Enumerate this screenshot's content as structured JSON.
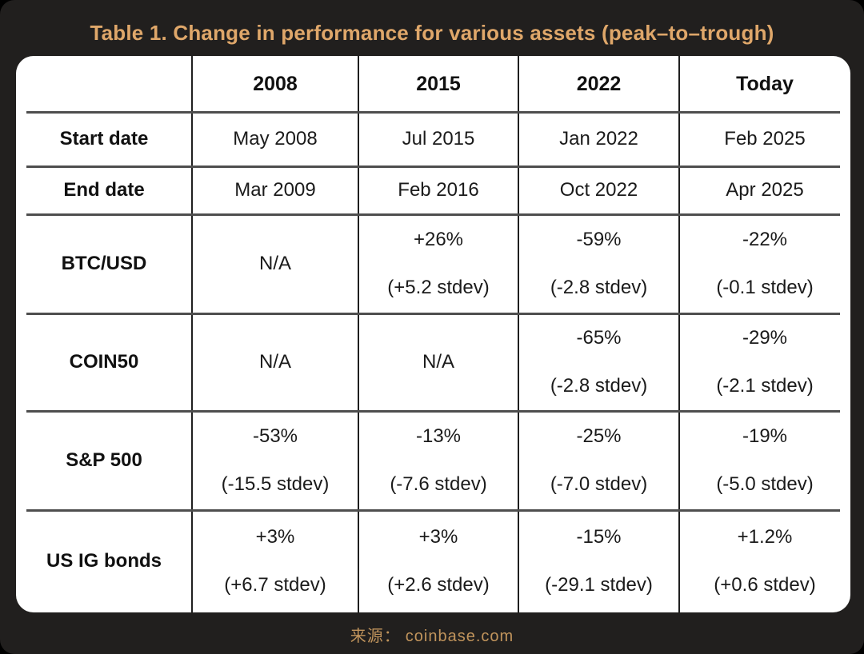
{
  "colors": {
    "background": "#000000",
    "panel": "#211f1e",
    "title_gold": "#dfa76a",
    "footer_gold": "#c1945c",
    "table_background": "#ffffff",
    "table_text": "#1b1b1b"
  },
  "chart_data": {
    "type": "table",
    "title": "Table 1. Change in performance for various assets (peak–to–trough)",
    "columns": [
      "",
      "2008",
      "2015",
      "2022",
      "Today"
    ],
    "rows": [
      {
        "label": "Start date",
        "cells": [
          {
            "main": "May 2008"
          },
          {
            "main": "Jul 2015"
          },
          {
            "main": "Jan 2022"
          },
          {
            "main": "Feb 2025"
          }
        ]
      },
      {
        "label": "End date",
        "cells": [
          {
            "main": "Mar 2009"
          },
          {
            "main": "Feb 2016"
          },
          {
            "main": "Oct 2022"
          },
          {
            "main": "Apr 2025"
          }
        ]
      },
      {
        "label": "BTC/USD",
        "cells": [
          {
            "main": "N/A",
            "sub": ""
          },
          {
            "main": "+26%",
            "sub": "(+5.2 stdev)"
          },
          {
            "main": "-59%",
            "sub": "(-2.8 stdev)"
          },
          {
            "main": "-22%",
            "sub": "(-0.1 stdev)"
          }
        ]
      },
      {
        "label": "COIN50",
        "cells": [
          {
            "main": "N/A",
            "sub": ""
          },
          {
            "main": "N/A",
            "sub": ""
          },
          {
            "main": "-65%",
            "sub": "(-2.8 stdev)"
          },
          {
            "main": "-29%",
            "sub": "(-2.1 stdev)"
          }
        ]
      },
      {
        "label": "S&P 500",
        "cells": [
          {
            "main": "-53%",
            "sub": "(-15.5 stdev)"
          },
          {
            "main": "-13%",
            "sub": "(-7.6 stdev)"
          },
          {
            "main": "-25%",
            "sub": "(-7.0 stdev)"
          },
          {
            "main": "-19%",
            "sub": "(-5.0 stdev)"
          }
        ]
      },
      {
        "label": "US IG bonds",
        "cells": [
          {
            "main": "+3%",
            "sub": "(+6.7 stdev)"
          },
          {
            "main": "+3%",
            "sub": "(+2.6 stdev)"
          },
          {
            "main": "-15%",
            "sub": "(-29.1 stdev)"
          },
          {
            "main": "+1.2%",
            "sub": "(+0.6 stdev)"
          }
        ]
      }
    ]
  },
  "footer": {
    "source_label": "来源：",
    "source_value": "coinbase.com"
  }
}
